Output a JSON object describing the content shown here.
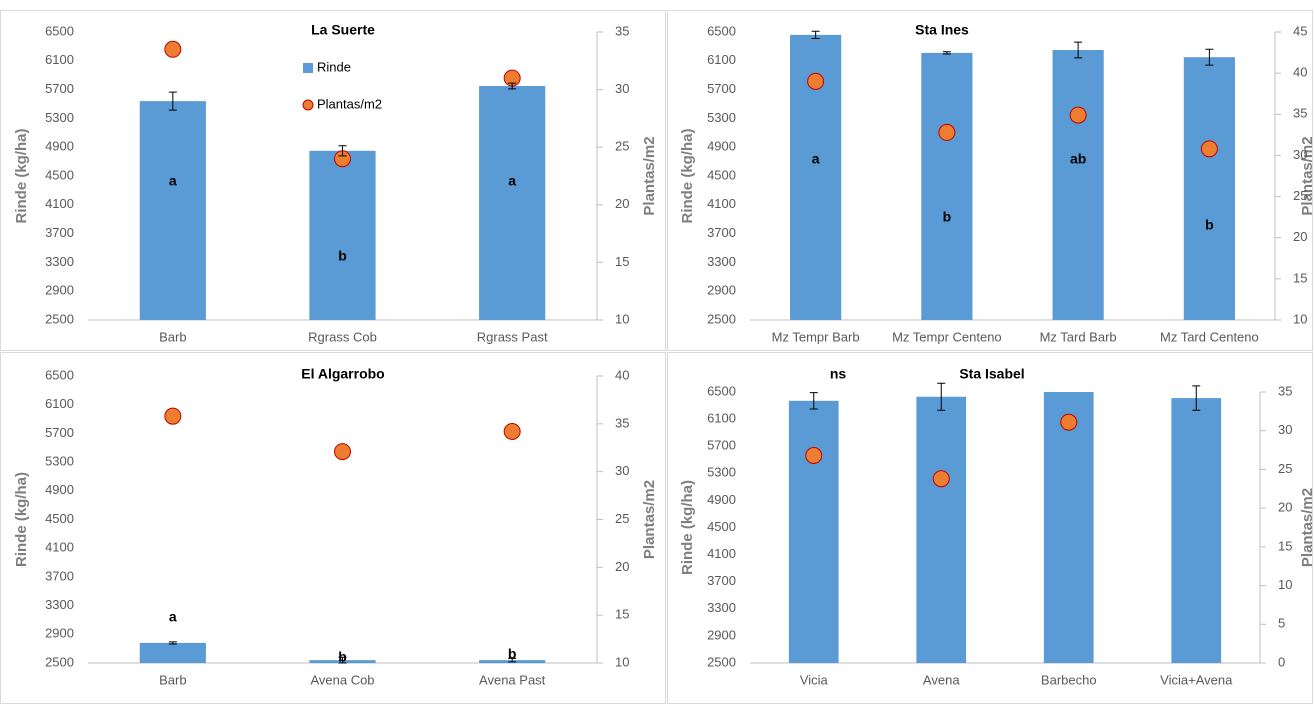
{
  "chart_data": [
    {
      "type": "bar",
      "title": "La Suerte",
      "ylabel": "Rinde (kg/ha)",
      "y2label": "Plantas/m2",
      "categories": [
        "Barb",
        "Rgrass Cob",
        "Rgrass Past"
      ],
      "series": [
        {
          "name": "Rinde",
          "type": "bar",
          "color": "#5b9bd5",
          "values": [
            5540,
            4850,
            5750
          ],
          "errors": [
            125,
            70,
            40
          ]
        },
        {
          "name": "Plantas/m2",
          "type": "scatter",
          "axis": "y2",
          "color": "#ed7d31",
          "values": [
            33.5,
            24,
            31
          ]
        }
      ],
      "ylim": [
        2500,
        6500
      ],
      "yticks": [
        2500,
        2900,
        3300,
        3700,
        4100,
        4500,
        4900,
        5300,
        5700,
        6100,
        6500
      ],
      "y2lim": [
        10,
        35
      ],
      "y2ticks": [
        10,
        15,
        20,
        25,
        30,
        35
      ],
      "letters": [
        "a",
        "b",
        "a"
      ],
      "legend": "top"
    },
    {
      "type": "bar",
      "title": "Sta Ines",
      "ylabel": "Rinde (kg/ha)",
      "y2label": "Plantas/m2",
      "categories": [
        "Mz Tempr Barb",
        "Mz Tempr Centeno",
        "Mz Tard Barb",
        "Mz Tard Centeno"
      ],
      "series": [
        {
          "type": "bar",
          "color": "#5b9bd5",
          "values": [
            6460,
            6210,
            6250,
            6150
          ],
          "errors": [
            50,
            15,
            110,
            110
          ]
        },
        {
          "type": "scatter",
          "axis": "y2",
          "color": "#ed7d31",
          "values": [
            39,
            32.8,
            34.9,
            30.8
          ]
        }
      ],
      "ylim": [
        2500,
        6500
      ],
      "yticks": [
        2500,
        2900,
        3300,
        3700,
        4100,
        4500,
        4900,
        5300,
        5700,
        6100,
        6500
      ],
      "y2lim": [
        10,
        45
      ],
      "y2ticks": [
        10,
        15,
        20,
        25,
        30,
        35,
        40,
        45
      ],
      "letters": [
        "a",
        "b",
        "ab",
        "b"
      ]
    },
    {
      "type": "bar",
      "title": "El Algarrobo",
      "ylabel": "Rinde (kg/ha)",
      "y2label": "Plantas/m2",
      "categories": [
        "Barb",
        "Avena Cob",
        "Avena Past"
      ],
      "series": [
        {
          "type": "bar",
          "color": "#5b9bd5",
          "values": [
            2780,
            2540,
            2540
          ],
          "errors": [
            15,
            40,
            25
          ]
        },
        {
          "type": "scatter",
          "axis": "y2",
          "color": "#ed7d31",
          "values": [
            35.8,
            32.1,
            34.2
          ]
        }
      ],
      "ylim": [
        2500,
        6500
      ],
      "yticks": [
        2500,
        2900,
        3300,
        3700,
        4100,
        4500,
        4900,
        5300,
        5700,
        6100,
        6500
      ],
      "y2lim": [
        10,
        40
      ],
      "y2ticks": [
        10,
        15,
        20,
        25,
        30,
        35,
        40
      ],
      "letters": [
        "a",
        "b",
        "b"
      ]
    },
    {
      "type": "bar",
      "title": "Sta Isabel",
      "ylabel": "Rinde (kg/ha)",
      "y2label": "Plantas/m2",
      "annotation": "ns",
      "categories": [
        "Vicia",
        "Avena",
        "Barbecho",
        "Vicia+Avena"
      ],
      "series": [
        {
          "type": "bar",
          "color": "#5b9bd5",
          "values": [
            6370,
            6430,
            6500,
            6410
          ],
          "errors": [
            120,
            200,
            null,
            180
          ]
        },
        {
          "type": "scatter",
          "axis": "y2",
          "color": "#ed7d31",
          "values": [
            26.8,
            23.8,
            31.1,
            null
          ]
        }
      ],
      "ylim": [
        2500,
        6500
      ],
      "yticks": [
        2500,
        2900,
        3300,
        3700,
        4100,
        4500,
        4900,
        5300,
        5700,
        6100,
        6500
      ],
      "y2lim": [
        0,
        35
      ],
      "y2ticks": [
        0,
        5,
        10,
        15,
        20,
        25,
        30,
        35
      ]
    }
  ]
}
